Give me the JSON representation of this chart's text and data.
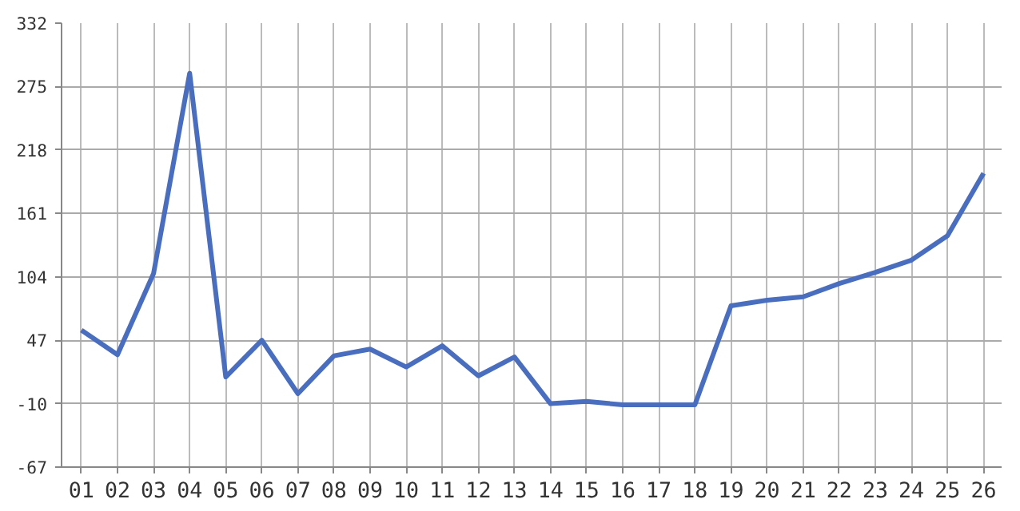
{
  "chart_data": {
    "type": "line",
    "categories": [
      "01",
      "02",
      "03",
      "04",
      "05",
      "06",
      "07",
      "08",
      "09",
      "10",
      "11",
      "12",
      "13",
      "14",
      "15",
      "16",
      "17",
      "18",
      "19",
      "20",
      "21",
      "22",
      "23",
      "24",
      "25",
      "26"
    ],
    "series": [
      {
        "color": "#4a6ebf",
        "values": [
          56,
          34,
          107,
          287,
          14,
          47,
          -1,
          33,
          39,
          23,
          42,
          15,
          32,
          -10,
          -8,
          -11,
          -11,
          -11,
          78,
          83,
          86,
          98,
          108,
          119,
          141,
          197
        ]
      }
    ],
    "ylim": [
      -67,
      332
    ],
    "yticks": [
      -67,
      -10,
      47,
      104,
      161,
      218,
      275,
      332
    ],
    "grid": true,
    "marker": "none",
    "line_style": "solid"
  }
}
